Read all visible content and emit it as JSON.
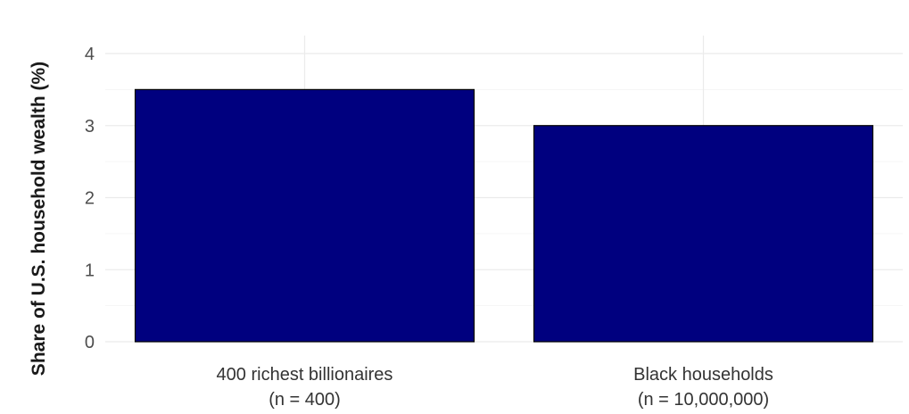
{
  "chart_data": {
    "type": "bar",
    "title": "",
    "xlabel": "",
    "ylabel": "Share of U.S. household wealth (%)",
    "categories": [
      [
        "400 richest billionaires",
        "(n = 400)"
      ],
      [
        "Black households",
        "(n = 10,000,000)"
      ]
    ],
    "values": [
      3.5,
      3.0
    ],
    "ylim": [
      0,
      4.25
    ],
    "yticks": [
      0,
      1,
      2,
      3,
      4
    ],
    "bar_color": "#00007f",
    "grid": true,
    "legend": "none"
  }
}
